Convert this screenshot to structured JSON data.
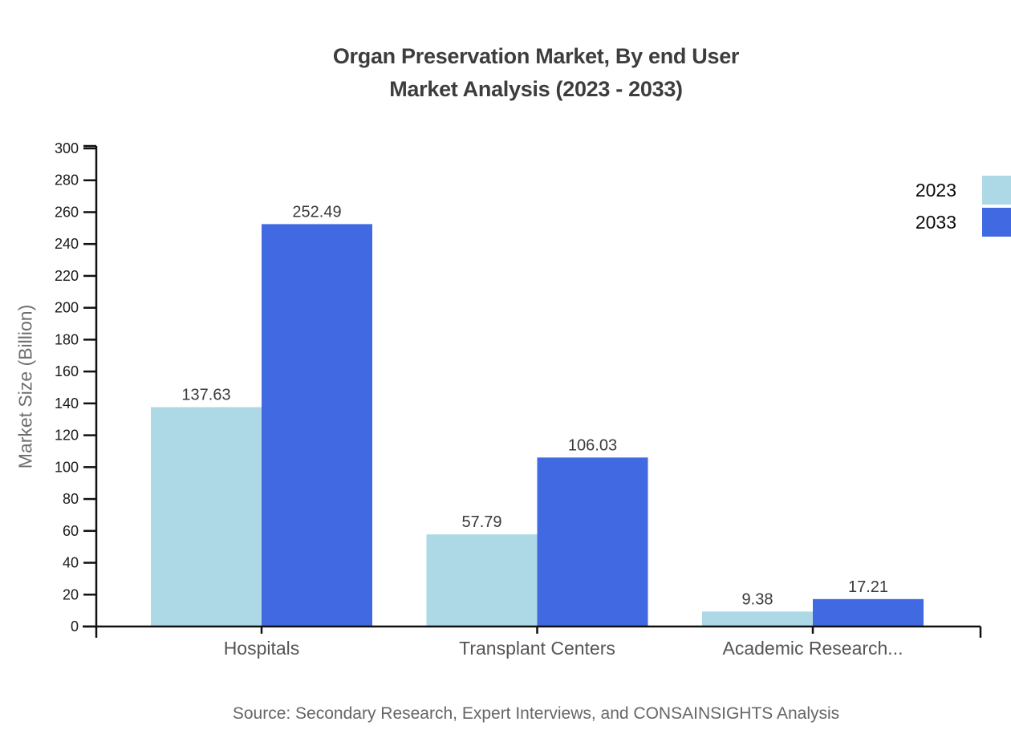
{
  "title": {
    "line1": "Organ Preservation Market, By end User",
    "line2": "Market Analysis (2023 - 2033)"
  },
  "source": "Source: Secondary Research, Expert Interviews, and CONSAINSIGHTS Analysis",
  "chart_data": {
    "type": "bar",
    "title": "Organ Preservation Market, By end User Market Analysis (2023 - 2033)",
    "categories": [
      "Hospitals",
      "Transplant Centers",
      "Academic Research..."
    ],
    "series": [
      {
        "name": "2023",
        "color": "#ADD8E6",
        "values": [
          137.63,
          57.79,
          9.38
        ]
      },
      {
        "name": "2033",
        "color": "#4169E1",
        "values": [
          252.49,
          106.03,
          17.21
        ]
      }
    ],
    "xlabel": "",
    "ylabel": "Market Size (Billion)",
    "ylim": [
      0,
      300
    ],
    "yticks": [
      0,
      20,
      40,
      60,
      80,
      100,
      120,
      140,
      160,
      180,
      200,
      220,
      240,
      260,
      280,
      300
    ],
    "grid": false,
    "legend_position": "top-right",
    "value_label_decimals": 2,
    "axis_color": "#111111",
    "tick_label_color": "#1a1a1a",
    "category_label_color": "#555555",
    "value_label_color": "#3a3a3a"
  }
}
